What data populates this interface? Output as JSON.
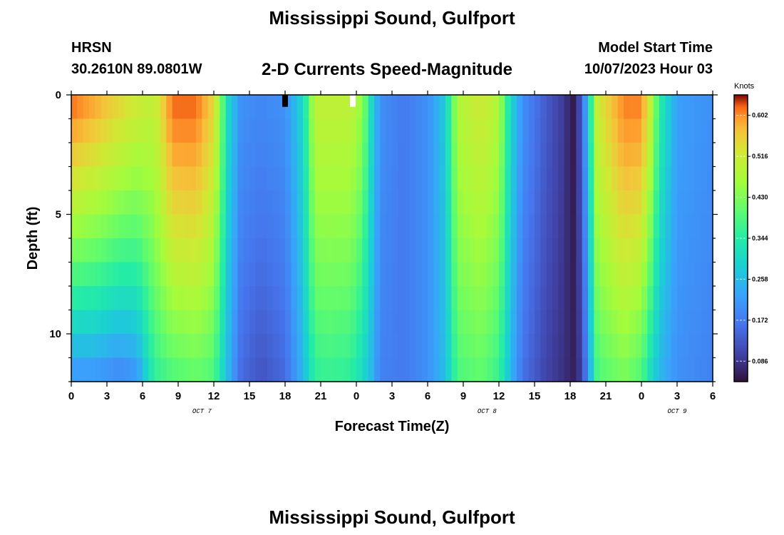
{
  "page": {
    "title": "Mississippi Sound, Gulfport",
    "station_code": "HRSN",
    "station_coords": "30.2610N  89.0801W",
    "subtitle": "2-D Currents Speed-Magnitude",
    "model_start_label": "Model Start Time",
    "model_start_value": "10/07/2023 Hour 03",
    "footer_title": "Mississippi Sound, Gulfport"
  },
  "chart_data": {
    "type": "heatmap",
    "title": "2-D Currents Speed-Magnitude",
    "xlabel": "Forecast Time(Z)",
    "ylabel": "Depth (ft)",
    "x_range_hours": [
      0,
      54
    ],
    "x_tick_labels": [
      "0",
      "3",
      "6",
      "9",
      "12",
      "15",
      "18",
      "21",
      "0",
      "3",
      "6",
      "9",
      "12",
      "15",
      "18",
      "21",
      "0",
      "3",
      "6"
    ],
    "date_labels": [
      {
        "label": "OCT 7",
        "hour": 11
      },
      {
        "label": "OCT 8",
        "hour": 35
      },
      {
        "label": "OCT 9",
        "hour": 51
      }
    ],
    "y_range_ft": [
      0,
      12
    ],
    "y_reversed": true,
    "y_tick_labels": [
      "0",
      "5",
      "10"
    ],
    "y_tick_values": [
      0,
      5,
      10
    ],
    "colorbar": {
      "unit": "Knots",
      "min": 0.043,
      "max": 0.645,
      "tick_labels": [
        "0.602",
        "0.516",
        "0.430",
        "0.344",
        "0.258",
        "0.172",
        "0.086"
      ],
      "tick_values": [
        0.602,
        0.516,
        0.43,
        0.344,
        0.258,
        0.172,
        0.086
      ]
    },
    "markers": [
      {
        "hour": 18,
        "depth_ft": [
          0,
          0.5
        ],
        "color": "#000000"
      },
      {
        "hour": 23.7,
        "depth_ft": [
          0,
          0.5
        ],
        "color": "#ffffff"
      }
    ],
    "speed_profile": {
      "hours": [
        0,
        2,
        4,
        5.5,
        7,
        8.5,
        10.5,
        12,
        13.2,
        14.3,
        16,
        18,
        19.5,
        20.5,
        21.5,
        23.5,
        24.5,
        25.3,
        26,
        28,
        30,
        31.5,
        32.5,
        34.5,
        36,
        37,
        38,
        40,
        41.5,
        42.2,
        43,
        44.3,
        46.5,
        48,
        48.8,
        49.5,
        51,
        54
      ],
      "surface_knots": [
        0.62,
        0.59,
        0.55,
        0.52,
        0.5,
        0.62,
        0.62,
        0.55,
        0.3,
        0.2,
        0.19,
        0.2,
        0.3,
        0.5,
        0.5,
        0.5,
        0.45,
        0.3,
        0.2,
        0.17,
        0.2,
        0.28,
        0.48,
        0.52,
        0.48,
        0.3,
        0.2,
        0.13,
        0.09,
        0.05,
        0.13,
        0.52,
        0.61,
        0.61,
        0.5,
        0.35,
        0.22,
        0.2
      ],
      "bottom_knots": [
        0.2,
        0.2,
        0.18,
        0.2,
        0.35,
        0.38,
        0.4,
        0.38,
        0.25,
        0.15,
        0.12,
        0.15,
        0.25,
        0.35,
        0.36,
        0.35,
        0.3,
        0.25,
        0.18,
        0.17,
        0.2,
        0.26,
        0.38,
        0.4,
        0.36,
        0.25,
        0.16,
        0.1,
        0.08,
        0.06,
        0.1,
        0.38,
        0.42,
        0.38,
        0.3,
        0.25,
        0.2,
        0.18
      ]
    }
  }
}
